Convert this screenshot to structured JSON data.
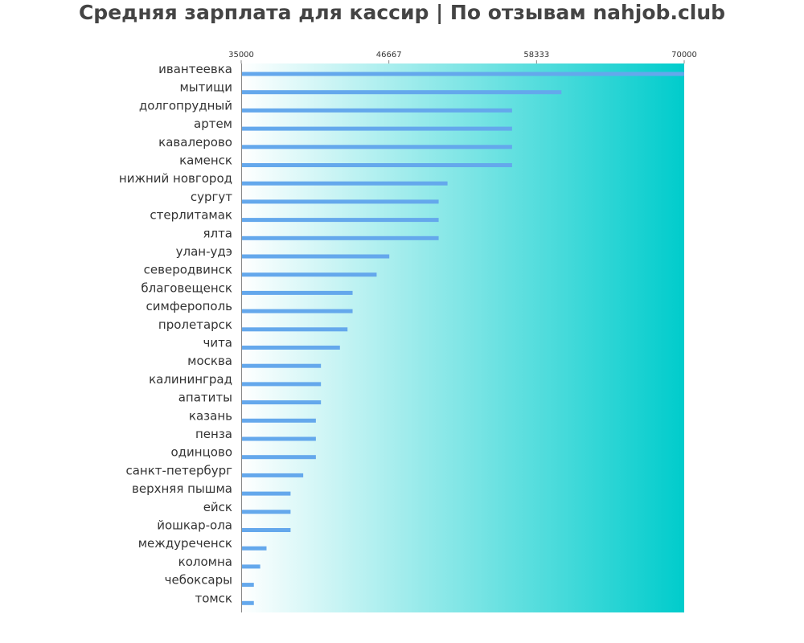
{
  "title": "Средняя зарплата для кассир | По отзывам nahjob.club",
  "colors": {
    "bar": "#64a8ec",
    "gradient_start": "#ffffff",
    "gradient_end": "#00cccc",
    "text": "#333333",
    "title": "#444444"
  },
  "chart_data": {
    "type": "bar",
    "orientation": "horizontal",
    "title": "Средняя зарплата для кассир | По отзывам nahjob.club",
    "xlabel": "",
    "ylabel": "",
    "xlim": [
      35000,
      70000
    ],
    "x_ticks": [
      35000,
      46667,
      58333,
      70000
    ],
    "x_tick_labels": [
      "35000",
      "46667",
      "58333",
      "70000"
    ],
    "x_axis_position": "top",
    "grid": false,
    "categories": [
      "ивантеевка",
      "мытищи",
      "долгопрудный",
      "артем",
      "кавалерово",
      "каменск",
      "нижний новгород",
      "сургут",
      "стерлитамак",
      "ялта",
      "улан-удэ",
      "северодвинск",
      "благовещенск",
      "симферополь",
      "пролетарск",
      "чита",
      "москва",
      "калининград",
      "апатиты",
      "казань",
      "пенза",
      "одинцово",
      "санкт-петербург",
      "верхняя пышма",
      "ейск",
      "йошкар-ола",
      "междуреченск",
      "коломна",
      "чебоксары",
      "томск"
    ],
    "values": [
      70000,
      60300,
      56400,
      56400,
      56400,
      56400,
      51300,
      50600,
      50600,
      50600,
      46700,
      45700,
      43800,
      43800,
      43400,
      42800,
      41300,
      41300,
      41300,
      40900,
      40900,
      40900,
      39900,
      38900,
      38900,
      38900,
      37000,
      36500,
      36000,
      36000
    ]
  }
}
